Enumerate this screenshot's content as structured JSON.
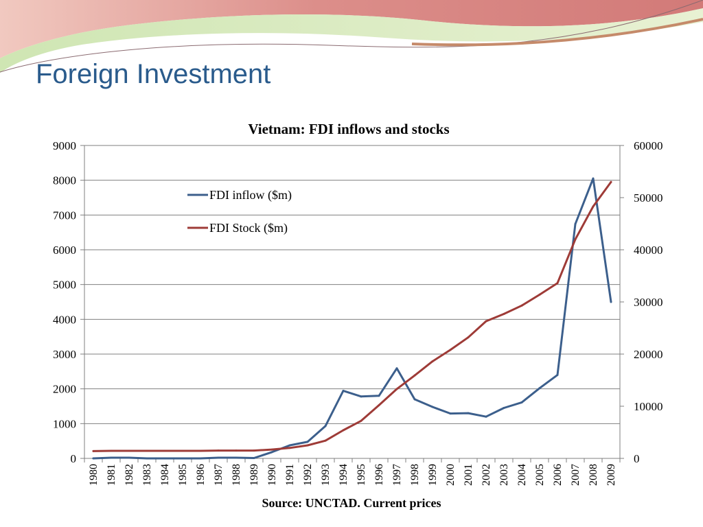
{
  "slide": {
    "title": "Foreign Investment",
    "colors": {
      "title": "#2a5b8c",
      "banner_red": "#d98080",
      "banner_green": "#bfe0a0"
    }
  },
  "chart_data": {
    "type": "line",
    "title": "Vietnam:  FDI inflows and stocks",
    "source_note": "Source: UNCTAD.  Current prices",
    "categories": [
      "1980",
      "1981",
      "1982",
      "1983",
      "1984",
      "1985",
      "1986",
      "1987",
      "1988",
      "1989",
      "1990",
      "1991",
      "1992",
      "1993",
      "1994",
      "1995",
      "1996",
      "1997",
      "1998",
      "1999",
      "2000",
      "2001",
      "2002",
      "2003",
      "2004",
      "2005",
      "2006",
      "2007",
      "2008",
      "2009"
    ],
    "y_left": {
      "min": 0,
      "max": 9000,
      "ticks": [
        0,
        1000,
        2000,
        3000,
        4000,
        5000,
        6000,
        7000,
        8000,
        9000
      ]
    },
    "y_right": {
      "min": 0,
      "max": 60000,
      "ticks": [
        0,
        10000,
        20000,
        30000,
        40000,
        50000,
        60000
      ]
    },
    "grid": true,
    "legend": {
      "position": "top-left-inside"
    },
    "series": [
      {
        "name": "FDI inflow ($m)",
        "axis": "left",
        "color": "#3c5f8c",
        "values": [
          0,
          20,
          20,
          0,
          0,
          0,
          0,
          20,
          20,
          10,
          180,
          375,
          475,
          930,
          1945,
          1780,
          1800,
          2590,
          1700,
          1480,
          1290,
          1300,
          1200,
          1450,
          1610,
          2020,
          2400,
          6740,
          8050,
          4500
        ]
      },
      {
        "name": "FDI Stock ($m)",
        "axis": "right",
        "color": "#9e3b37",
        "values": [
          1400,
          1450,
          1450,
          1450,
          1450,
          1450,
          1450,
          1500,
          1500,
          1500,
          1700,
          2000,
          2500,
          3400,
          5400,
          7200,
          10200,
          13300,
          15900,
          18600,
          20800,
          23200,
          26300,
          27700,
          29300,
          31400,
          33600,
          42000,
          48300,
          53000
        ]
      }
    ]
  }
}
